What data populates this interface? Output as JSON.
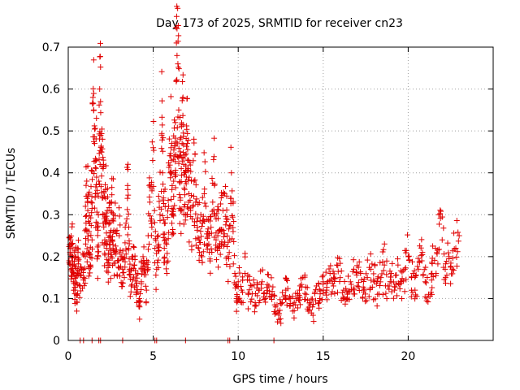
{
  "chart_data": {
    "type": "scatter",
    "title": "Day 173 of 2025, SRMTID for receiver cn23",
    "xlabel": "GPS time / hours",
    "ylabel": "SRMTID / TECUs",
    "xlim": [
      0,
      25
    ],
    "ylim": [
      0,
      0.7
    ],
    "xticks": [
      0,
      5,
      10,
      15,
      20
    ],
    "yticks": [
      0,
      0.1,
      0.2,
      0.3,
      0.4,
      0.5,
      0.6,
      0.7
    ],
    "xtick_labels": [
      "0",
      "5",
      "10",
      "15",
      "20"
    ],
    "ytick_labels": [
      "0",
      "0.1",
      "0.2",
      "0.3",
      "0.4",
      "0.5",
      "0.6",
      "0.7"
    ],
    "grid": true,
    "marker": "+",
    "color": "#e00000",
    "zero_points_x": [
      0.7,
      0.9,
      1.4,
      1.8,
      1.9,
      3.2,
      5.1,
      5.2,
      6.9,
      9.4,
      9.5,
      12.1
    ],
    "series": [
      {
        "name": "SRMTID",
        "points": [
          [
            0.05,
            0.19
          ],
          [
            0.1,
            0.21
          ],
          [
            0.15,
            0.17
          ],
          [
            0.2,
            0.23
          ],
          [
            0.25,
            0.2
          ],
          [
            0.3,
            0.14
          ],
          [
            0.35,
            0.18
          ],
          [
            0.4,
            0.12
          ],
          [
            0.45,
            0.2
          ],
          [
            0.5,
            0.07
          ],
          [
            0.55,
            0.16
          ],
          [
            0.6,
            0.19
          ],
          [
            0.7,
            0.13
          ],
          [
            0.8,
            0.17
          ],
          [
            0.9,
            0.15
          ],
          [
            1.0,
            0.2
          ],
          [
            1.05,
            0.37
          ],
          [
            1.1,
            0.26
          ],
          [
            1.15,
            0.31
          ],
          [
            1.2,
            0.21
          ],
          [
            1.25,
            0.28
          ],
          [
            1.3,
            0.18
          ],
          [
            1.35,
            0.33
          ],
          [
            1.4,
            0.24
          ],
          [
            1.45,
            0.58
          ],
          [
            1.5,
            0.55
          ],
          [
            1.55,
            0.47
          ],
          [
            1.6,
            0.35
          ],
          [
            1.65,
            0.43
          ],
          [
            1.7,
            0.27
          ],
          [
            1.75,
            0.2
          ],
          [
            1.8,
            0.38
          ],
          [
            1.85,
            0.6
          ],
          [
            1.9,
            0.57
          ],
          [
            1.95,
            0.45
          ],
          [
            2.0,
            0.34
          ],
          [
            2.05,
            0.41
          ],
          [
            2.1,
            0.3
          ],
          [
            2.15,
            0.24
          ],
          [
            2.2,
            0.36
          ],
          [
            2.25,
            0.22
          ],
          [
            2.3,
            0.31
          ],
          [
            2.35,
            0.18
          ],
          [
            2.4,
            0.28
          ],
          [
            2.45,
            0.25
          ],
          [
            2.5,
            0.2
          ],
          [
            2.55,
            0.33
          ],
          [
            2.6,
            0.24
          ],
          [
            2.65,
            0.29
          ],
          [
            2.7,
            0.21
          ],
          [
            2.8,
            0.26
          ],
          [
            2.9,
            0.19
          ],
          [
            3.0,
            0.25
          ],
          [
            3.1,
            0.2
          ],
          [
            3.2,
            0.17
          ],
          [
            3.3,
            0.15
          ],
          [
            3.4,
            0.28
          ],
          [
            3.5,
            0.36
          ],
          [
            3.55,
            0.22
          ],
          [
            3.6,
            0.17
          ],
          [
            3.7,
            0.13
          ],
          [
            3.8,
            0.2
          ],
          [
            3.9,
            0.18
          ],
          [
            4.0,
            0.11
          ],
          [
            4.1,
            0.16
          ],
          [
            4.2,
            0.08
          ],
          [
            4.3,
            0.14
          ],
          [
            4.4,
            0.2
          ],
          [
            4.5,
            0.17
          ],
          [
            4.6,
            0.12
          ],
          [
            4.7,
            0.25
          ],
          [
            4.8,
            0.33
          ],
          [
            4.9,
            0.29
          ],
          [
            5.0,
            0.46
          ],
          [
            5.1,
            0.22
          ],
          [
            5.2,
            0.17
          ],
          [
            5.3,
            0.25
          ],
          [
            5.4,
            0.3
          ],
          [
            5.5,
            0.49
          ],
          [
            5.55,
            0.4
          ],
          [
            5.6,
            0.34
          ],
          [
            5.65,
            0.22
          ],
          [
            5.7,
            0.28
          ],
          [
            5.8,
            0.16
          ],
          [
            5.9,
            0.32
          ],
          [
            6.0,
            0.4
          ],
          [
            6.05,
            0.46
          ],
          [
            6.1,
            0.36
          ],
          [
            6.15,
            0.3
          ],
          [
            6.2,
            0.38
          ],
          [
            6.25,
            0.44
          ],
          [
            6.3,
            0.52
          ],
          [
            6.35,
            0.62
          ],
          [
            6.4,
            0.68
          ],
          [
            6.45,
            0.66
          ],
          [
            6.5,
            0.55
          ],
          [
            6.55,
            0.44
          ],
          [
            6.6,
            0.34
          ],
          [
            6.65,
            0.41
          ],
          [
            6.7,
            0.47
          ],
          [
            6.75,
            0.58
          ],
          [
            6.8,
            0.42
          ],
          [
            6.85,
            0.36
          ],
          [
            6.9,
            0.3
          ],
          [
            6.95,
            0.39
          ],
          [
            7.0,
            0.47
          ],
          [
            7.05,
            0.41
          ],
          [
            7.1,
            0.35
          ],
          [
            7.2,
            0.31
          ],
          [
            7.3,
            0.29
          ],
          [
            7.4,
            0.38
          ],
          [
            7.5,
            0.33
          ],
          [
            7.6,
            0.27
          ],
          [
            7.7,
            0.24
          ],
          [
            7.8,
            0.3
          ],
          [
            7.9,
            0.28
          ],
          [
            8.0,
            0.35
          ],
          [
            8.1,
            0.32
          ],
          [
            8.2,
            0.26
          ],
          [
            8.3,
            0.21
          ],
          [
            8.4,
            0.27
          ],
          [
            8.5,
            0.33
          ],
          [
            8.6,
            0.37
          ],
          [
            8.7,
            0.29
          ],
          [
            8.8,
            0.25
          ],
          [
            8.9,
            0.22
          ],
          [
            9.0,
            0.26
          ],
          [
            9.1,
            0.31
          ],
          [
            9.2,
            0.35
          ],
          [
            9.3,
            0.29
          ],
          [
            9.4,
            0.2
          ],
          [
            9.5,
            0.24
          ],
          [
            9.6,
            0.4
          ],
          [
            9.7,
            0.26
          ],
          [
            9.8,
            0.16
          ],
          [
            9.9,
            0.1
          ],
          [
            10.0,
            0.14
          ],
          [
            10.2,
            0.12
          ],
          [
            10.4,
            0.16
          ],
          [
            10.6,
            0.11
          ],
          [
            10.8,
            0.13
          ],
          [
            11.0,
            0.09
          ],
          [
            11.2,
            0.12
          ],
          [
            11.4,
            0.14
          ],
          [
            11.6,
            0.1
          ],
          [
            11.8,
            0.13
          ],
          [
            12.0,
            0.11
          ],
          [
            12.2,
            0.08
          ],
          [
            12.4,
            0.05
          ],
          [
            12.6,
            0.09
          ],
          [
            12.8,
            0.12
          ],
          [
            13.0,
            0.1
          ],
          [
            13.2,
            0.07
          ],
          [
            13.4,
            0.1
          ],
          [
            13.6,
            0.12
          ],
          [
            13.8,
            0.15
          ],
          [
            14.0,
            0.11
          ],
          [
            14.2,
            0.09
          ],
          [
            14.4,
            0.06
          ],
          [
            14.6,
            0.13
          ],
          [
            14.8,
            0.1
          ],
          [
            15.0,
            0.14
          ],
          [
            15.2,
            0.12
          ],
          [
            15.4,
            0.16
          ],
          [
            15.6,
            0.13
          ],
          [
            15.8,
            0.18
          ],
          [
            16.0,
            0.15
          ],
          [
            16.2,
            0.12
          ],
          [
            16.4,
            0.1
          ],
          [
            16.6,
            0.14
          ],
          [
            16.8,
            0.17
          ],
          [
            17.0,
            0.13
          ],
          [
            17.2,
            0.16
          ],
          [
            17.4,
            0.12
          ],
          [
            17.6,
            0.15
          ],
          [
            17.8,
            0.17
          ],
          [
            18.0,
            0.14
          ],
          [
            18.2,
            0.11
          ],
          [
            18.4,
            0.15
          ],
          [
            18.6,
            0.18
          ],
          [
            18.8,
            0.13
          ],
          [
            19.0,
            0.16
          ],
          [
            19.2,
            0.12
          ],
          [
            19.4,
            0.18
          ],
          [
            19.6,
            0.14
          ],
          [
            19.8,
            0.17
          ],
          [
            20.0,
            0.2
          ],
          [
            20.2,
            0.15
          ],
          [
            20.4,
            0.12
          ],
          [
            20.6,
            0.17
          ],
          [
            20.8,
            0.19
          ],
          [
            21.0,
            0.14
          ],
          [
            21.2,
            0.11
          ],
          [
            21.4,
            0.16
          ],
          [
            21.6,
            0.22
          ],
          [
            21.8,
            0.3
          ],
          [
            22.0,
            0.24
          ],
          [
            22.2,
            0.15
          ],
          [
            22.4,
            0.2
          ],
          [
            22.6,
            0.17
          ],
          [
            22.8,
            0.22
          ],
          [
            23.0,
            0.25
          ]
        ]
      }
    ]
  }
}
